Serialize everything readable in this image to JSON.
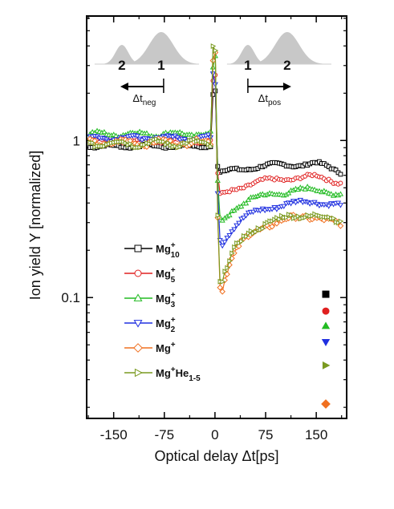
{
  "chart_data": {
    "type": "line",
    "xlabel": "Optical delay Δt[ps]",
    "ylabel": "Ion yield Y [normalized]",
    "x_scale": "linear",
    "y_scale": "log",
    "xlim": [
      -190,
      195
    ],
    "ylim": [
      0.017,
      6.2
    ],
    "x_ticks": [
      -150,
      -75,
      0,
      75,
      150
    ],
    "x_tick_labels": [
      "-150",
      "-75",
      "0",
      "75",
      "150"
    ],
    "y_ticks": [
      0.1,
      1
    ],
    "y_tick_labels": [
      "0.1",
      "1"
    ],
    "grid": false,
    "legend_position": "left-center",
    "series": [
      {
        "name": "Mg10+",
        "legend_base": "Mg",
        "legend_sup": "+",
        "legend_sub": "10",
        "color": "#000000",
        "marker": "square",
        "pre": 0.92,
        "peak": 3.0,
        "min": 0.62,
        "recov": 0.72,
        "end": 0.64,
        "decay": 60,
        "amp": 0.02,
        "marker_right": 0.105
      },
      {
        "name": "Mg5+",
        "legend_base": "Mg",
        "legend_sup": "+",
        "legend_sub": "5",
        "color": "#e02020",
        "marker": "circle",
        "pre": 1.0,
        "peak": 3.2,
        "min": 0.44,
        "recov": 0.6,
        "end": 0.55,
        "decay": 55,
        "amp": 0.025,
        "marker_right": 0.082
      },
      {
        "name": "Mg3+",
        "legend_base": "Mg",
        "legend_sup": "+",
        "legend_sub": "3",
        "color": "#22bb22",
        "marker": "triangle-up",
        "pre": 1.1,
        "peak": 3.5,
        "min": 0.3,
        "recov": 0.5,
        "end": 0.46,
        "decay": 50,
        "amp": 0.03,
        "marker_right": 0.066
      },
      {
        "name": "Mg2+",
        "legend_base": "Mg",
        "legend_sup": "+",
        "legend_sub": "2",
        "color": "#2030e0",
        "marker": "triangle-down",
        "pre": 1.04,
        "peak": 3.6,
        "min": 0.21,
        "recov": 0.42,
        "end": 0.39,
        "decay": 48,
        "amp": 0.03,
        "marker_right": 0.052
      },
      {
        "name": "Mg+",
        "legend_base": "Mg",
        "legend_sup": "+",
        "legend_sub": "",
        "color": "#f07020",
        "marker": "diamond",
        "pre": 0.97,
        "peak": 4.6,
        "min": 0.1,
        "recov": 0.34,
        "end": 0.29,
        "decay": 45,
        "amp": 0.04,
        "marker_right": 0.021
      },
      {
        "name": "Mg+He1-5",
        "legend_base": "Mg",
        "legend_sup": "+",
        "legend_sub": "",
        "legend_extra": "He",
        "legend_extra_sub": "1-5",
        "color": "#7a9a20",
        "marker": "triangle-right",
        "pre": 0.96,
        "peak": 4.2,
        "min": 0.11,
        "recov": 0.35,
        "end": 0.3,
        "decay": 45,
        "amp": 0.04,
        "marker_right": 0.037
      }
    ],
    "inset": {
      "pulse1_label": "1",
      "pulse2_label": "2",
      "dt_neg_base": "Δt",
      "dt_neg_sub": "neg",
      "dt_pos_base": "Δt",
      "dt_pos_sub": "pos"
    }
  }
}
